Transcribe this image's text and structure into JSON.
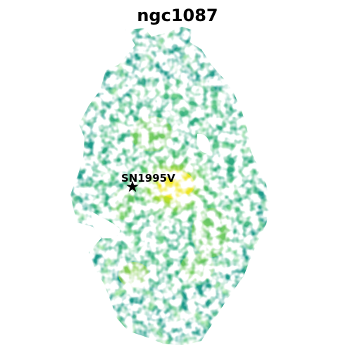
{
  "title": "ngc1087",
  "marker": {
    "label": "SN1995V",
    "icon": "star-icon"
  },
  "colors": {
    "low": "#1f9a8a",
    "mid": "#5ec962",
    "high": "#e6e419",
    "background": "#ffffff"
  }
}
